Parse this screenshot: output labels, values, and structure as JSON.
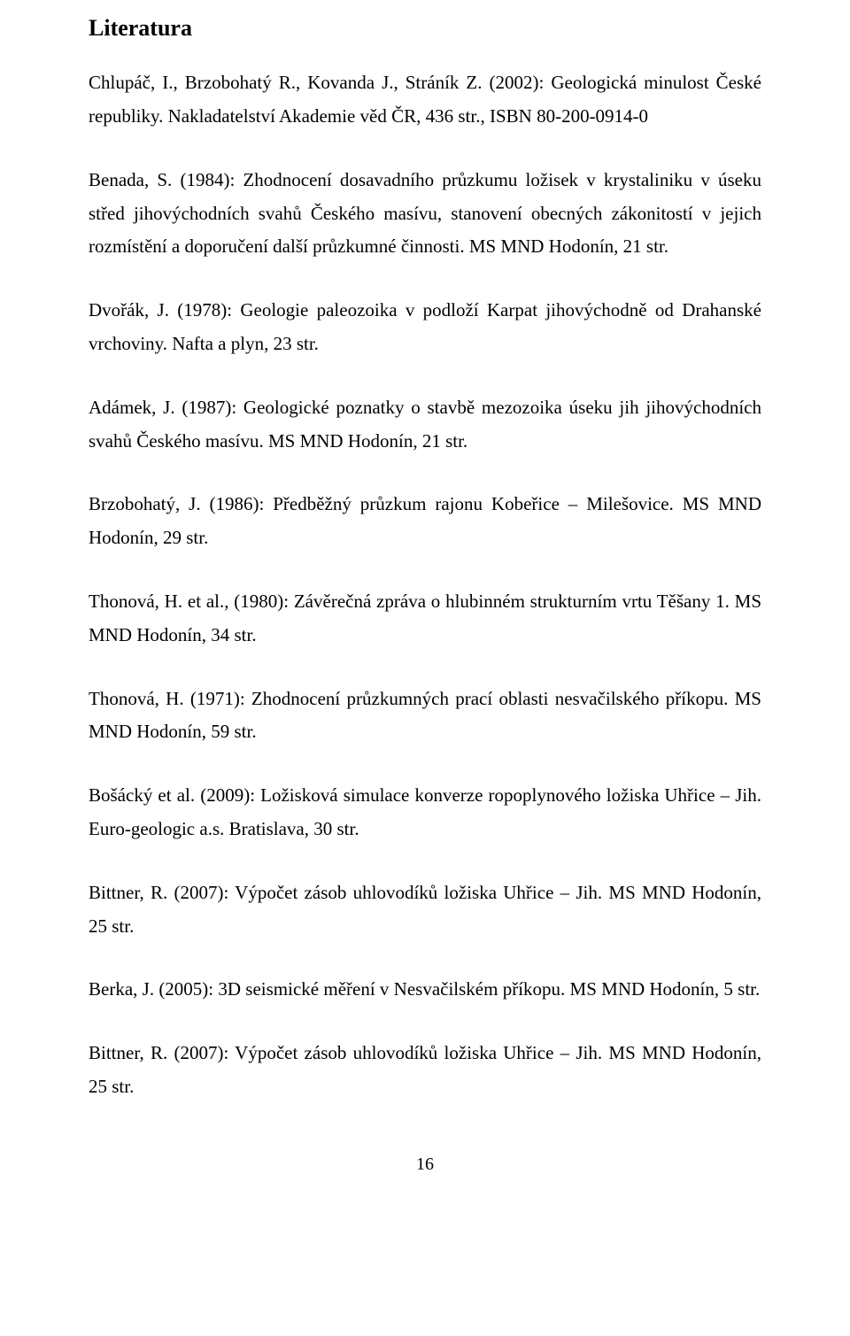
{
  "heading": "Literatura",
  "refs": [
    "Chlupáč, I., Brzobohatý R., Kovanda J., Stráník Z. (2002): Geologická minulost České republiky. Nakladatelství Akademie věd ČR, 436 str., ISBN 80-200-0914-0",
    "Benada, S. (1984): Zhodnocení dosavadního průzkumu ložisek v krystaliniku v úseku střed jihovýchodních svahů Českého masívu, stanovení obecných zákonitostí v jejich rozmístění a doporučení další průzkumné činnosti. MS MND Hodonín, 21 str.",
    "Dvořák, J. (1978): Geologie paleozoika v podloží Karpat jihovýchodně od Drahanské vrchoviny. Nafta a plyn, 23 str.",
    "Adámek, J. (1987): Geologické poznatky o stavbě mezozoika úseku jih jihovýchodních svahů Českého masívu. MS MND Hodonín, 21 str.",
    "Brzobohatý, J. (1986): Předběžný průzkum rajonu Kobeřice – Milešovice. MS MND Hodonín, 29 str.",
    "Thonová, H. et al., (1980): Závěrečná zpráva o hlubinném strukturním vrtu Těšany 1. MS MND Hodonín, 34 str.",
    "Thonová, H. (1971): Zhodnocení průzkumných prací oblasti nesvačilského příkopu. MS MND Hodonín, 59 str.",
    "Bošácký et al. (2009): Ložisková simulace konverze ropoplynového ložiska Uhřice – Jih. Euro-geologic a.s. Bratislava, 30 str.",
    "Bittner, R. (2007): Výpočet zásob uhlovodíků ložiska Uhřice – Jih. MS MND Hodonín, 25 str.",
    "Berka, J. (2005): 3D seismické měření v Nesvačilském příkopu. MS MND Hodonín, 5 str.",
    "Bittner, R. (2007): Výpočet zásob uhlovodíků ložiska Uhřice – Jih. MS MND Hodonín, 25 str."
  ],
  "page_number": "16"
}
